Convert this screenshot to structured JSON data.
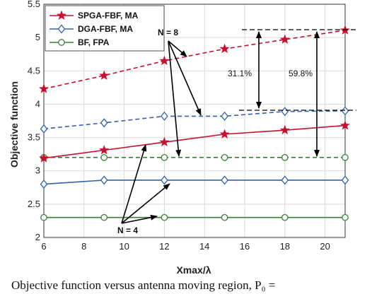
{
  "chart_data": {
    "type": "line",
    "xlabel": "Xmax/λ",
    "ylabel": "Objective function",
    "xlim": [
      6,
      21
    ],
    "ylim": [
      2,
      5.5
    ],
    "xticks": [
      6,
      8,
      10,
      12,
      14,
      16,
      18,
      20
    ],
    "yticks": [
      2,
      2.5,
      3,
      3.5,
      4,
      4.5,
      5,
      5.5
    ],
    "grid": true,
    "legend_position": "top-left",
    "x": [
      6,
      9,
      12,
      15,
      18,
      21
    ],
    "legend": [
      {
        "name": "SPGA-FBF, MA",
        "color": "#c8102e",
        "marker": "star"
      },
      {
        "name": "DGA-FBF, MA",
        "color": "#3461a8",
        "marker": "diamond"
      },
      {
        "name": "BF, FPA",
        "color": "#3b7d3b",
        "marker": "circle"
      }
    ],
    "series": [
      {
        "name": "SPGA-FBF, MA",
        "group": "N = 8",
        "style": "dashed",
        "color": "#c8102e",
        "marker": "star",
        "values": [
          4.23,
          4.43,
          4.65,
          4.83,
          4.97,
          5.11
        ]
      },
      {
        "name": "DGA-FBF, MA",
        "group": "N = 8",
        "style": "dashed",
        "color": "#3461a8",
        "marker": "diamond",
        "values": [
          3.63,
          3.72,
          3.82,
          3.82,
          3.89,
          3.9
        ]
      },
      {
        "name": "BF, FPA",
        "group": "N = 8",
        "style": "dashed",
        "color": "#3b7d3b",
        "marker": "circle",
        "values": [
          3.2,
          3.2,
          3.2,
          3.2,
          3.2,
          3.2
        ]
      },
      {
        "name": "SPGA-FBF, MA",
        "group": "N = 4",
        "style": "solid",
        "color": "#c8102e",
        "marker": "star",
        "values": [
          3.19,
          3.31,
          3.43,
          3.55,
          3.61,
          3.68
        ]
      },
      {
        "name": "DGA-FBF, MA",
        "group": "N = 4",
        "style": "solid",
        "color": "#3461a8",
        "marker": "diamond",
        "values": [
          2.8,
          2.86,
          2.86,
          2.86,
          2.86,
          2.86
        ]
      },
      {
        "name": "BF, FPA",
        "group": "N = 4",
        "style": "solid",
        "color": "#3b7d3b",
        "marker": "circle",
        "values": [
          2.3,
          2.3,
          2.3,
          2.3,
          2.3,
          2.3
        ]
      }
    ],
    "annotations": {
      "n8_label": "N = 8",
      "n4_label": "N = 4",
      "gap_small": "31.1%",
      "gap_large": "59.8%"
    }
  },
  "caption": "Objective function versus antenna moving region, P₀ ="
}
